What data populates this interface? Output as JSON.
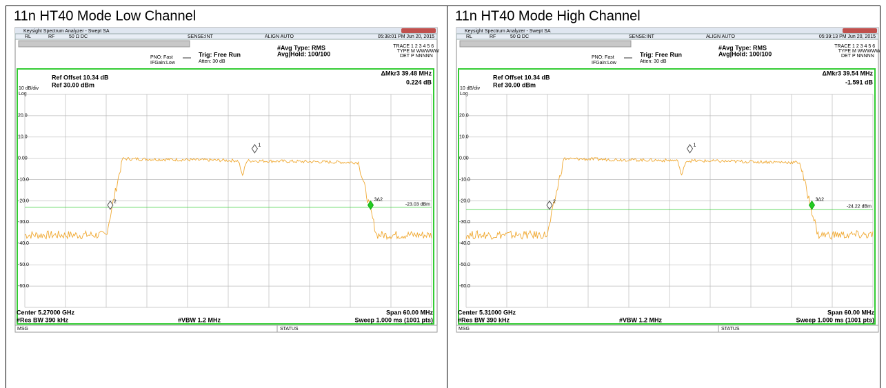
{
  "panels": [
    {
      "title": "11n HT40 Mode Low Channel",
      "screen": {
        "window_title": "Keysight Spectrum Analyzer - Swept SA",
        "rl": "RL",
        "rf": "RF",
        "input": "50 Ω  DC",
        "sense": "SENSE:INT",
        "align": "ALIGN AUTO",
        "datetime": "05:38:01 PM Jun 20, 2015",
        "pno": "PNO: Fast",
        "ifgain": "IFGain:Low",
        "trig": "Trig: Free Run",
        "atten": "Atten: 30 dB",
        "avg_type": "#Avg Type: RMS",
        "avg_hold": "Avg|Hold: 100/100",
        "trace_label": "TRACE",
        "trace_nums": "1 2 3 4 5 6",
        "type_label": "TYPE",
        "type_val": "M WWWWW",
        "det_label": "DET",
        "det_val": "P NNNNN",
        "ref_offset": "Ref Offset 10.34 dB",
        "ref": "Ref 30.00 dBm",
        "scale": "10 dB/div",
        "log": "Log",
        "marker_readout": "ΔMkr3 39.48 MHz",
        "marker_value": "0.224 dB",
        "y_labels": [
          "20.0",
          "10.0",
          "0.00",
          "-10.0",
          "-20.0",
          "-30.0",
          "-40.0",
          "-50.0",
          "-60.0"
        ],
        "markers": [
          "1",
          "2",
          "3Δ2"
        ],
        "display_line": "-23.03 dBm",
        "center": "Center 5.27000 GHz",
        "res_bw": "#Res BW 390 kHz",
        "vbw": "#VBW 1.2 MHz",
        "span": "Span 60.00 MHz",
        "sweep": "Sweep  1.000 ms (1001 pts)",
        "msg": "MSG",
        "status": "STATUS"
      }
    },
    {
      "title": "11n HT40 Mode High Channel",
      "screen": {
        "window_title": "Keysight Spectrum Analyzer - Swept SA",
        "rl": "RL",
        "rf": "RF",
        "input": "50 Ω  DC",
        "sense": "SENSE:INT",
        "align": "ALIGN AUTO",
        "datetime": "05:39:13 PM Jun 20, 2015",
        "pno": "PNO: Fast",
        "ifgain": "IFGain:Low",
        "trig": "Trig: Free Run",
        "atten": "Atten: 30 dB",
        "avg_type": "#Avg Type: RMS",
        "avg_hold": "Avg|Hold: 100/100",
        "trace_label": "TRACE",
        "trace_nums": "1 2 3 4 5 6",
        "type_label": "TYPE",
        "type_val": "M WWWWW",
        "det_label": "DET",
        "det_val": "P NNNNN",
        "ref_offset": "Ref Offset 10.34 dB",
        "ref": "Ref 30.00 dBm",
        "scale": "10 dB/div",
        "log": "Log",
        "marker_readout": "ΔMkr3 39.54 MHz",
        "marker_value": "-1.591 dB",
        "y_labels": [
          "20.0",
          "10.0",
          "0.00",
          "-10.0",
          "-20.0",
          "-30.0",
          "-40.0",
          "-50.0",
          "-60.0"
        ],
        "markers": [
          "1",
          "2",
          "3Δ2"
        ],
        "display_line": "-24.22 dBm",
        "center": "Center 5.31000 GHz",
        "res_bw": "#Res BW 390 kHz",
        "vbw": "#VBW 1.2 MHz",
        "span": "Span 60.00 MHz",
        "sweep": "Sweep  1.000 ms (1001 pts)",
        "msg": "MSG",
        "status": "STATUS"
      }
    }
  ]
}
